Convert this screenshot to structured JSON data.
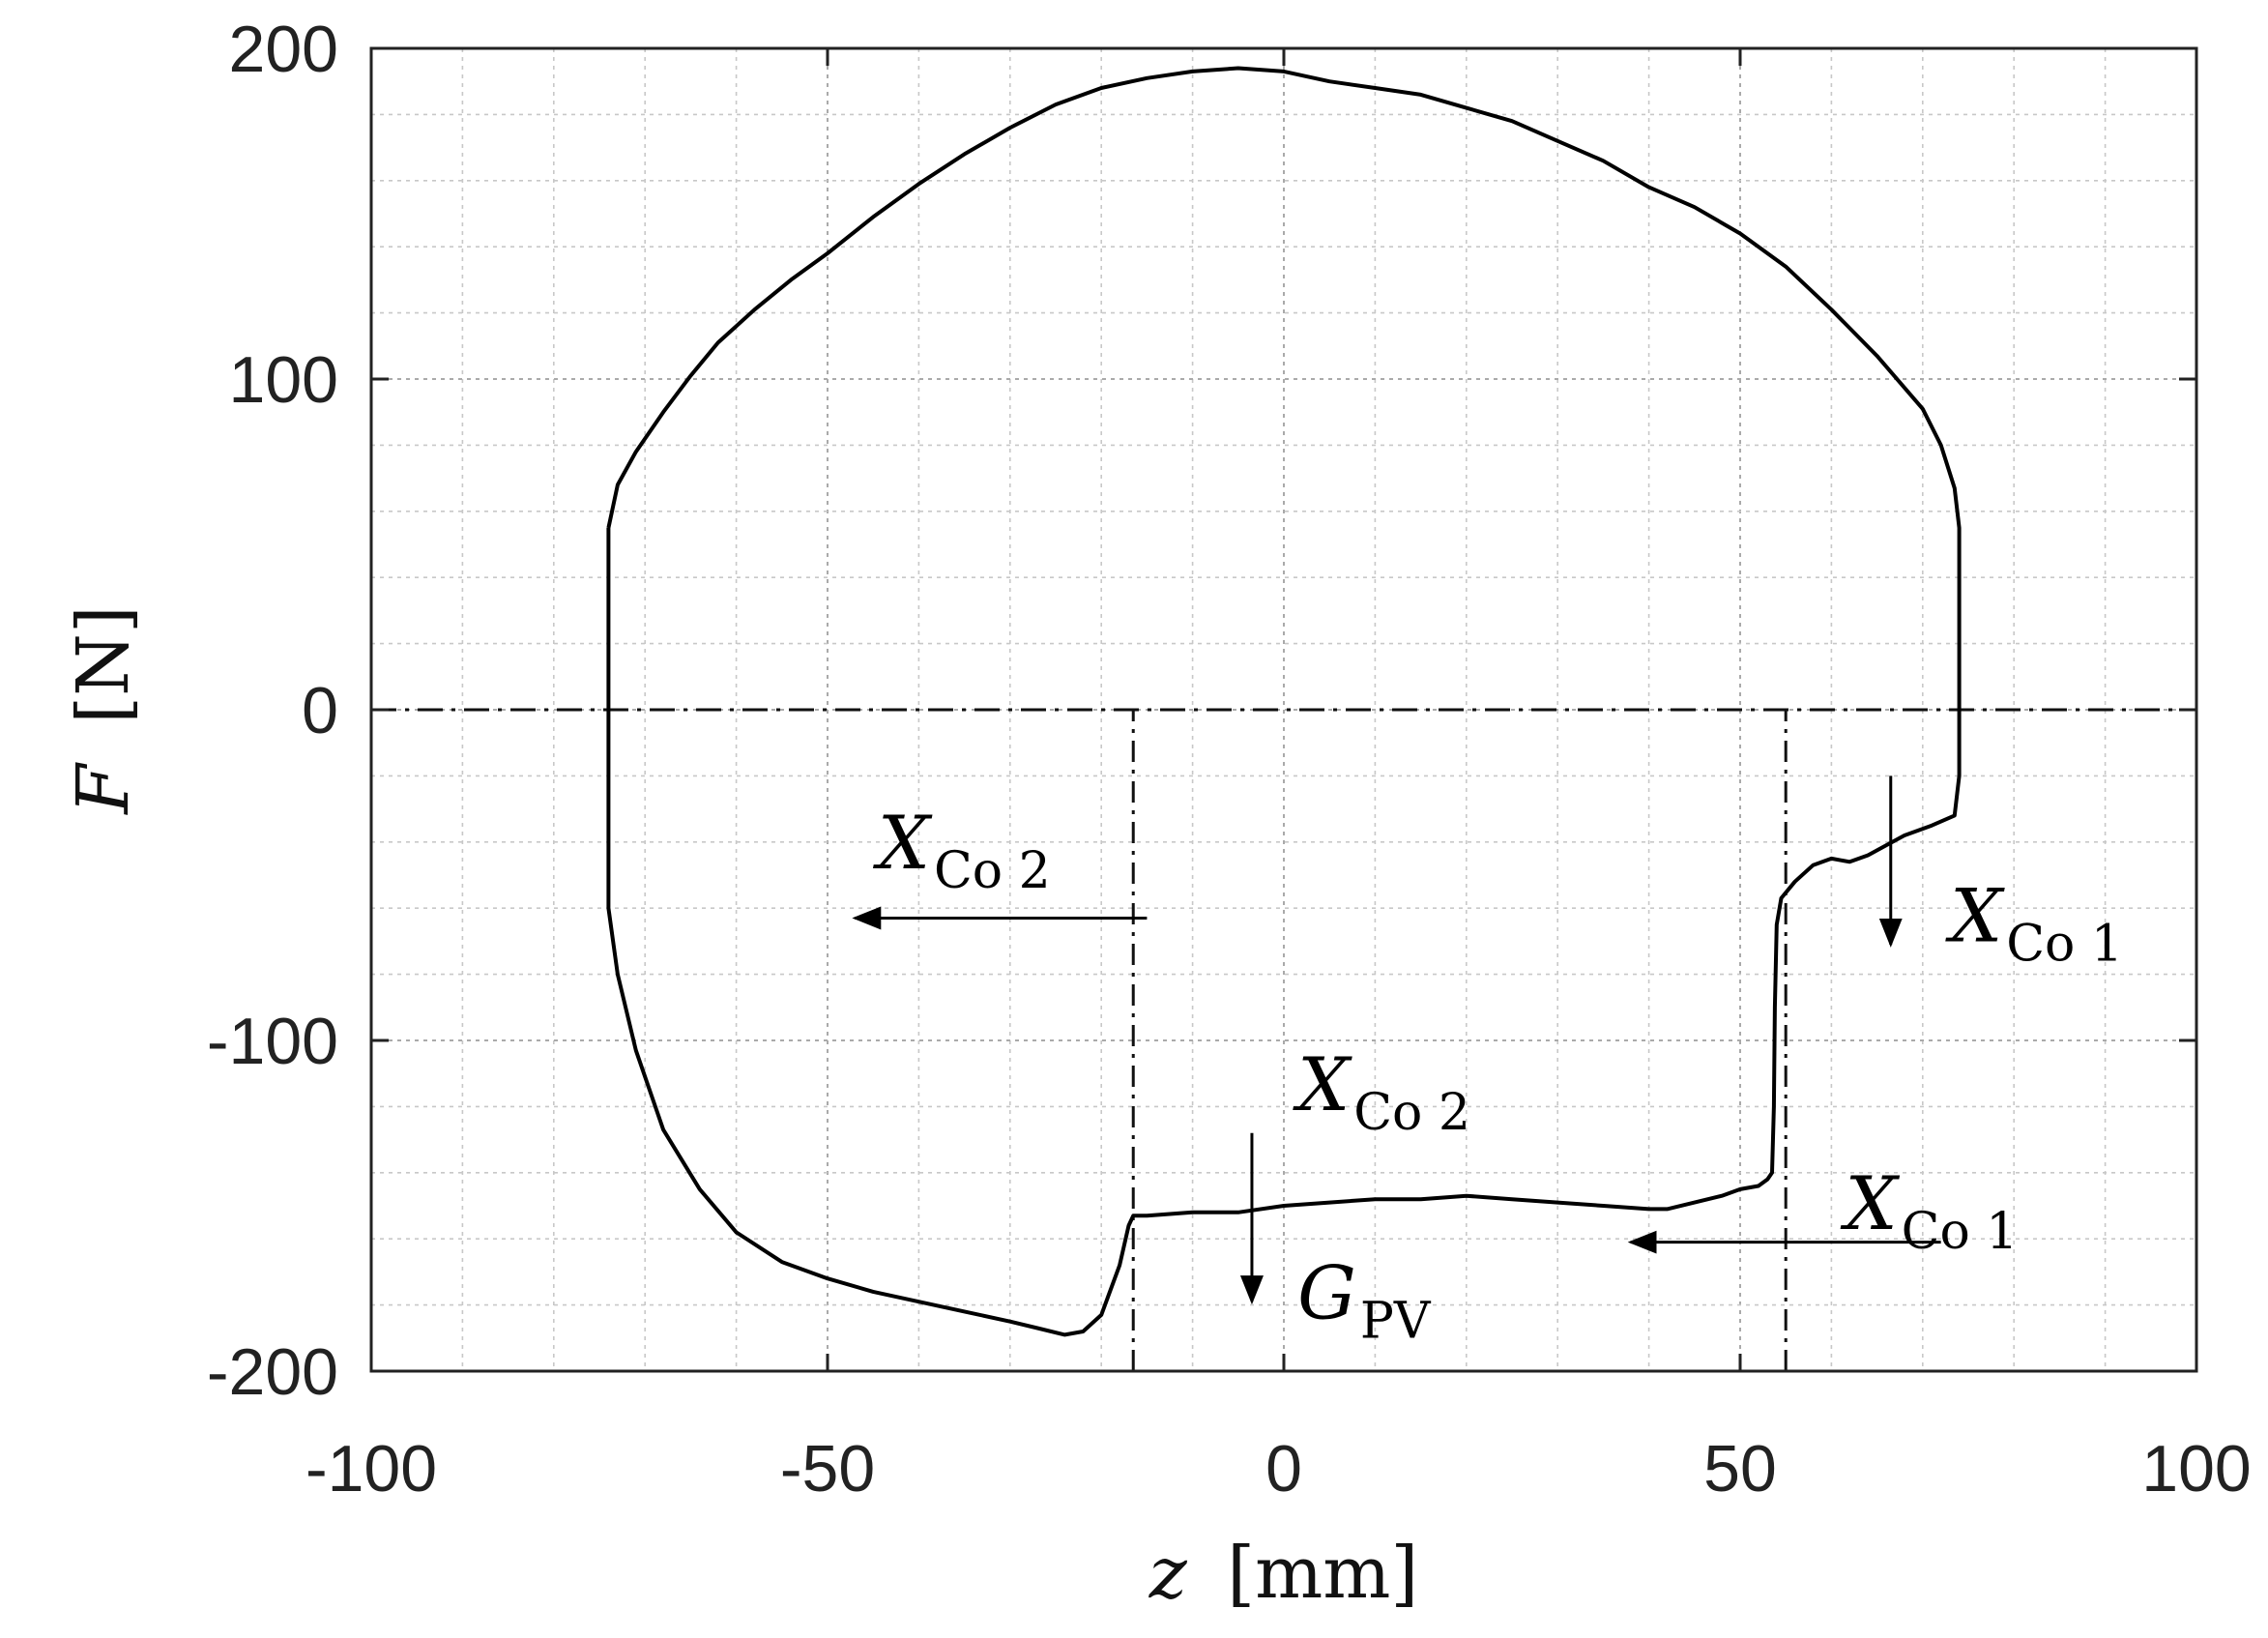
{
  "chart_data": {
    "type": "line",
    "xlabel": {
      "var": "z",
      "unit": "[mm]"
    },
    "ylabel": {
      "var": "F",
      "unit": "[N]"
    },
    "xlim": [
      -100,
      100
    ],
    "ylim": [
      -200,
      200
    ],
    "x_ticks": [
      -100,
      -50,
      0,
      50,
      100
    ],
    "y_ticks": [
      -200,
      -100,
      0,
      100,
      200
    ],
    "x_tick_labels": [
      "-100",
      "-50",
      "0",
      "50",
      "100"
    ],
    "y_tick_labels": [
      "-200",
      "-100",
      "0",
      "100",
      "200"
    ],
    "grid": "major+minor, dotted",
    "zero_line": "dash-dot",
    "series": [
      {
        "color": "#000000",
        "points": [
          [
            -74,
            55
          ],
          [
            -73,
            68
          ],
          [
            -71,
            78
          ],
          [
            -68,
            90
          ],
          [
            -65,
            101
          ],
          [
            -62,
            111
          ],
          [
            -58,
            121
          ],
          [
            -54,
            130
          ],
          [
            -50,
            138
          ],
          [
            -45,
            149
          ],
          [
            -40,
            159
          ],
          [
            -35,
            168
          ],
          [
            -30,
            176
          ],
          [
            -25,
            183
          ],
          [
            -20,
            188
          ],
          [
            -15,
            191
          ],
          [
            -10,
            193
          ],
          [
            -5,
            194
          ],
          [
            0,
            193
          ],
          [
            5,
            190
          ],
          [
            10,
            188
          ],
          [
            15,
            186
          ],
          [
            20,
            182
          ],
          [
            25,
            178
          ],
          [
            30,
            172
          ],
          [
            35,
            166
          ],
          [
            40,
            158
          ],
          [
            45,
            152
          ],
          [
            50,
            144
          ],
          [
            55,
            134
          ],
          [
            60,
            121
          ],
          [
            65,
            107
          ],
          [
            70,
            91
          ],
          [
            72,
            80
          ],
          [
            73.5,
            67
          ],
          [
            74,
            55
          ],
          [
            74,
            30
          ],
          [
            74,
            -20
          ],
          [
            73.5,
            -32
          ],
          [
            71,
            -35
          ],
          [
            68,
            -38
          ],
          [
            66,
            -41
          ],
          [
            64,
            -44
          ],
          [
            62,
            -46
          ],
          [
            60,
            -45
          ],
          [
            58,
            -47
          ],
          [
            56,
            -52
          ],
          [
            54.5,
            -57
          ],
          [
            54,
            -65
          ],
          [
            53.8,
            -90
          ],
          [
            53.7,
            -120
          ],
          [
            53.5,
            -140
          ],
          [
            53,
            -142
          ],
          [
            52,
            -144
          ],
          [
            50,
            -145
          ],
          [
            48,
            -147
          ],
          [
            45,
            -149
          ],
          [
            42,
            -151
          ],
          [
            40,
            -151
          ],
          [
            35,
            -150
          ],
          [
            30,
            -149
          ],
          [
            25,
            -148
          ],
          [
            20,
            -147
          ],
          [
            15,
            -148
          ],
          [
            10,
            -148
          ],
          [
            5,
            -149
          ],
          [
            0,
            -150
          ],
          [
            -5,
            -152
          ],
          [
            -10,
            -152
          ],
          [
            -15,
            -153
          ],
          [
            -16.5,
            -153
          ],
          [
            -17,
            -156
          ],
          [
            -18,
            -168
          ],
          [
            -20,
            -183
          ],
          [
            -22,
            -188
          ],
          [
            -24,
            -189
          ],
          [
            -27,
            -187
          ],
          [
            -30,
            -185
          ],
          [
            -35,
            -182
          ],
          [
            -40,
            -179
          ],
          [
            -45,
            -176
          ],
          [
            -50,
            -172
          ],
          [
            -55,
            -167
          ],
          [
            -60,
            -158
          ],
          [
            -64,
            -145
          ],
          [
            -68,
            -127
          ],
          [
            -71,
            -103
          ],
          [
            -73,
            -80
          ],
          [
            -74,
            -60
          ],
          [
            -74,
            0
          ],
          [
            -74,
            55
          ]
        ]
      }
    ],
    "vertical_markers": [
      {
        "x": -16.5,
        "y_from": -200,
        "y_to": 0,
        "style": "dash-dot"
      },
      {
        "x": 55,
        "y_from": -200,
        "y_to": 0,
        "style": "dash-dot"
      }
    ],
    "annotations": [
      {
        "main": "X",
        "sub": "Co 2",
        "x": -44.5,
        "y": -48
      },
      {
        "main": "X",
        "sub": "Co 1",
        "x": 73,
        "y": -70
      },
      {
        "main": "X",
        "sub": "Co 2",
        "x": 1.5,
        "y": -121
      },
      {
        "main": "X",
        "sub": "Co 1",
        "x": 61.5,
        "y": -157
      },
      {
        "main": "G",
        "sub": "PV",
        "x": 1.5,
        "y": -184
      }
    ],
    "arrows": [
      {
        "from": [
          -15,
          -63
        ],
        "to": [
          -47,
          -63
        ]
      },
      {
        "from": [
          66.5,
          -20
        ],
        "to": [
          66.5,
          -71
        ]
      },
      {
        "from": [
          -3.5,
          -128
        ],
        "to": [
          -3.5,
          -179
        ]
      },
      {
        "from": [
          72,
          -161
        ],
        "to": [
          38,
          -161
        ]
      }
    ]
  }
}
